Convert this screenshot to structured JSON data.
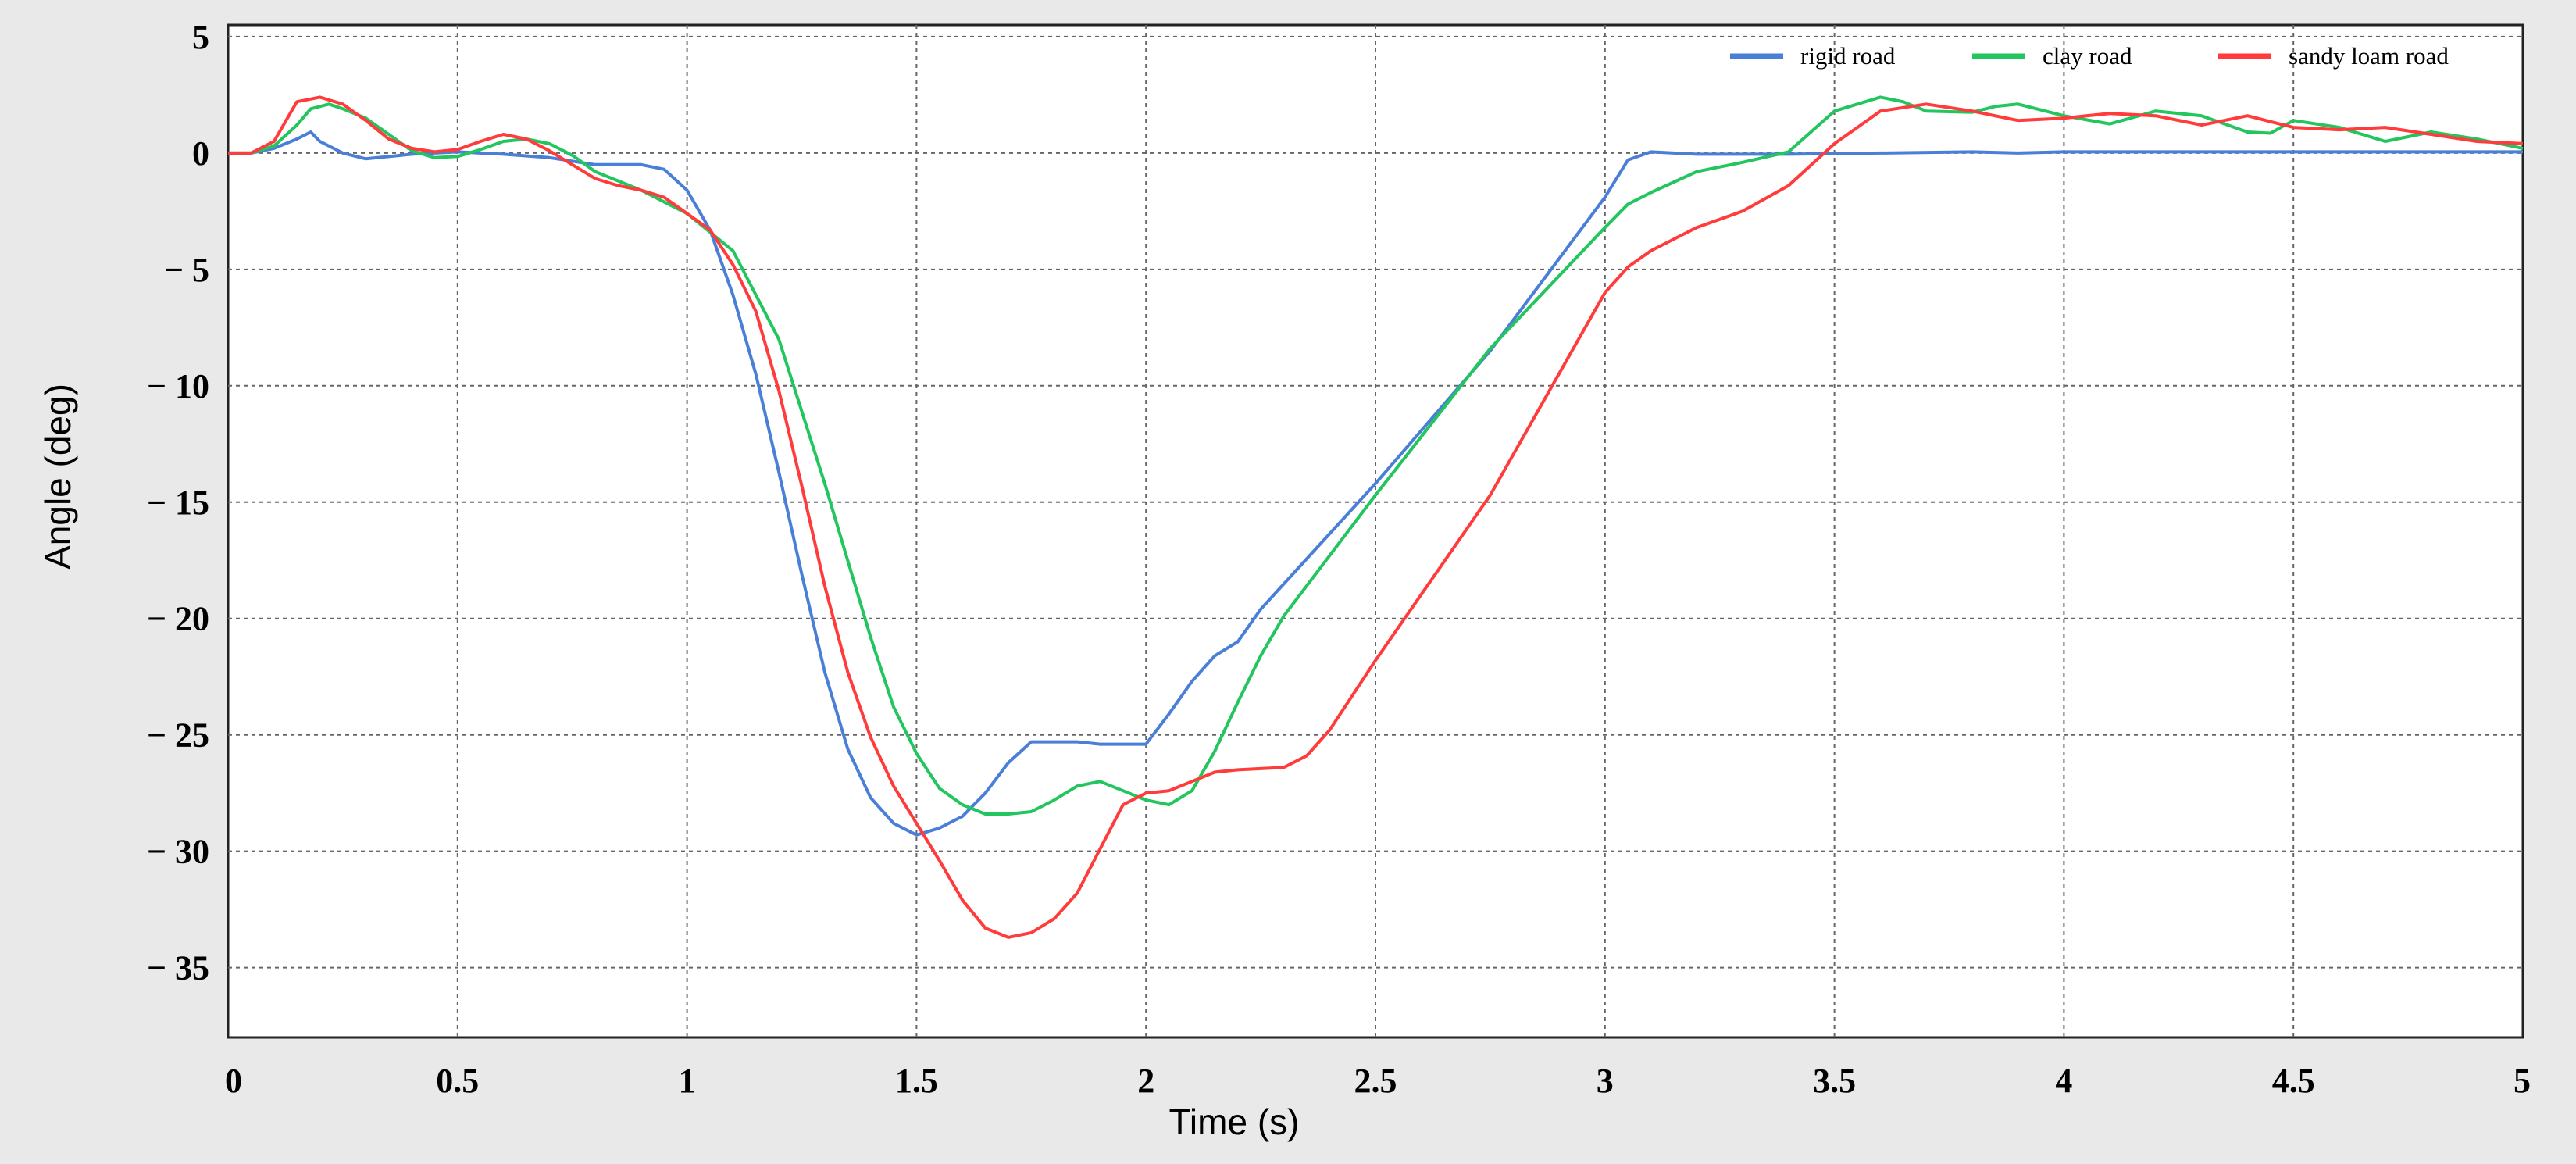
{
  "chart_data": {
    "type": "line",
    "title": "",
    "xlabel": "Time (s)",
    "ylabel": "Angle (deg)",
    "xlim": [
      0,
      5
    ],
    "ylim": [
      -38,
      5.5
    ],
    "x_ticks": [
      0,
      0.5,
      1,
      1.5,
      2,
      2.5,
      3,
      3.5,
      4,
      4.5,
      5
    ],
    "x_tick_labels": [
      "0",
      "0.5",
      "1",
      "1.5",
      "2",
      "2.5",
      "3",
      "3.5",
      "4",
      "4.5",
      "5"
    ],
    "y_ticks": [
      5,
      0,
      -5,
      -10,
      -15,
      -20,
      -25,
      -30,
      -35
    ],
    "y_tick_labels": [
      "5",
      "0",
      "− 5",
      "− 10",
      "− 15",
      "− 20",
      "− 25",
      "− 30",
      "− 35"
    ],
    "grid": true,
    "legend_position": "top-right",
    "series": [
      {
        "name": "rigid road",
        "color": "#4a7fd8",
        "points": [
          [
            0,
            0
          ],
          [
            0.05,
            0
          ],
          [
            0.1,
            0.2
          ],
          [
            0.15,
            0.6
          ],
          [
            0.18,
            0.9
          ],
          [
            0.2,
            0.5
          ],
          [
            0.25,
            0
          ],
          [
            0.3,
            -0.25
          ],
          [
            0.4,
            -0.05
          ],
          [
            0.5,
            0.05
          ],
          [
            0.6,
            -0.05
          ],
          [
            0.7,
            -0.2
          ],
          [
            0.8,
            -0.5
          ],
          [
            0.9,
            -0.5
          ],
          [
            0.95,
            -0.7
          ],
          [
            1.0,
            -1.6
          ],
          [
            1.05,
            -3.3
          ],
          [
            1.1,
            -6.1
          ],
          [
            1.15,
            -9.5
          ],
          [
            1.2,
            -13.7
          ],
          [
            1.25,
            -18.1
          ],
          [
            1.3,
            -22.3
          ],
          [
            1.35,
            -25.6
          ],
          [
            1.4,
            -27.7
          ],
          [
            1.45,
            -28.8
          ],
          [
            1.5,
            -29.3
          ],
          [
            1.55,
            -29.0
          ],
          [
            1.6,
            -28.5
          ],
          [
            1.65,
            -27.5
          ],
          [
            1.7,
            -26.2
          ],
          [
            1.75,
            -25.3
          ],
          [
            1.8,
            -25.3
          ],
          [
            1.85,
            -25.3
          ],
          [
            1.9,
            -25.4
          ],
          [
            1.95,
            -25.4
          ],
          [
            2.0,
            -25.4
          ],
          [
            2.05,
            -24.1
          ],
          [
            2.1,
            -22.7
          ],
          [
            2.15,
            -21.6
          ],
          [
            2.2,
            -21.0
          ],
          [
            2.25,
            -19.6
          ],
          [
            2.5,
            -14.2
          ],
          [
            2.75,
            -8.5
          ],
          [
            3.0,
            -1.9
          ],
          [
            3.05,
            -0.3
          ],
          [
            3.1,
            0.05
          ],
          [
            3.2,
            -0.05
          ],
          [
            3.4,
            -0.05
          ],
          [
            3.6,
            0
          ],
          [
            3.8,
            0.05
          ],
          [
            3.9,
            0
          ],
          [
            4.0,
            0.05
          ],
          [
            4.5,
            0.05
          ],
          [
            5.0,
            0.05
          ]
        ]
      },
      {
        "name": "clay road",
        "color": "#22c55e",
        "points": [
          [
            0,
            0
          ],
          [
            0.05,
            0
          ],
          [
            0.1,
            0.3
          ],
          [
            0.15,
            1.2
          ],
          [
            0.18,
            1.9
          ],
          [
            0.22,
            2.1
          ],
          [
            0.25,
            1.9
          ],
          [
            0.3,
            1.5
          ],
          [
            0.35,
            0.8
          ],
          [
            0.4,
            0.1
          ],
          [
            0.45,
            -0.2
          ],
          [
            0.5,
            -0.15
          ],
          [
            0.55,
            0.15
          ],
          [
            0.6,
            0.5
          ],
          [
            0.65,
            0.6
          ],
          [
            0.7,
            0.4
          ],
          [
            0.75,
            -0.1
          ],
          [
            0.8,
            -0.8
          ],
          [
            0.9,
            -1.6
          ],
          [
            1.0,
            -2.6
          ],
          [
            1.1,
            -4.2
          ],
          [
            1.2,
            -8.0
          ],
          [
            1.3,
            -14.2
          ],
          [
            1.4,
            -20.8
          ],
          [
            1.45,
            -23.8
          ],
          [
            1.5,
            -25.8
          ],
          [
            1.55,
            -27.3
          ],
          [
            1.6,
            -28.0
          ],
          [
            1.65,
            -28.4
          ],
          [
            1.7,
            -28.4
          ],
          [
            1.75,
            -28.3
          ],
          [
            1.8,
            -27.8
          ],
          [
            1.85,
            -27.2
          ],
          [
            1.9,
            -27.0
          ],
          [
            1.95,
            -27.4
          ],
          [
            2.0,
            -27.8
          ],
          [
            2.05,
            -28.0
          ],
          [
            2.1,
            -27.4
          ],
          [
            2.15,
            -25.7
          ],
          [
            2.2,
            -23.6
          ],
          [
            2.25,
            -21.6
          ],
          [
            2.3,
            -19.9
          ],
          [
            2.5,
            -14.7
          ],
          [
            2.75,
            -8.4
          ],
          [
            3.0,
            -3.2
          ],
          [
            3.05,
            -2.2
          ],
          [
            3.1,
            -1.7
          ],
          [
            3.2,
            -0.8
          ],
          [
            3.3,
            -0.4
          ],
          [
            3.4,
            0.05
          ],
          [
            3.5,
            1.8
          ],
          [
            3.6,
            2.4
          ],
          [
            3.65,
            2.2
          ],
          [
            3.7,
            1.8
          ],
          [
            3.8,
            1.75
          ],
          [
            3.85,
            2.0
          ],
          [
            3.9,
            2.1
          ],
          [
            4.0,
            1.6
          ],
          [
            4.1,
            1.25
          ],
          [
            4.2,
            1.8
          ],
          [
            4.3,
            1.6
          ],
          [
            4.4,
            0.9
          ],
          [
            4.45,
            0.85
          ],
          [
            4.5,
            1.4
          ],
          [
            4.6,
            1.1
          ],
          [
            4.7,
            0.5
          ],
          [
            4.8,
            0.9
          ],
          [
            4.9,
            0.6
          ],
          [
            5.0,
            0.2
          ]
        ]
      },
      {
        "name": "sandy loam road",
        "color": "#ff3b3b",
        "points": [
          [
            0,
            0
          ],
          [
            0.05,
            0
          ],
          [
            0.1,
            0.5
          ],
          [
            0.15,
            2.2
          ],
          [
            0.2,
            2.4
          ],
          [
            0.25,
            2.1
          ],
          [
            0.3,
            1.4
          ],
          [
            0.35,
            0.6
          ],
          [
            0.4,
            0.2
          ],
          [
            0.45,
            0.05
          ],
          [
            0.5,
            0.15
          ],
          [
            0.55,
            0.5
          ],
          [
            0.6,
            0.8
          ],
          [
            0.65,
            0.6
          ],
          [
            0.7,
            0.1
          ],
          [
            0.75,
            -0.5
          ],
          [
            0.8,
            -1.1
          ],
          [
            0.85,
            -1.4
          ],
          [
            0.9,
            -1.6
          ],
          [
            0.95,
            -1.9
          ],
          [
            1.0,
            -2.6
          ],
          [
            1.05,
            -3.3
          ],
          [
            1.1,
            -4.8
          ],
          [
            1.15,
            -6.8
          ],
          [
            1.2,
            -10.2
          ],
          [
            1.25,
            -14.3
          ],
          [
            1.3,
            -18.6
          ],
          [
            1.35,
            -22.3
          ],
          [
            1.4,
            -25.1
          ],
          [
            1.45,
            -27.2
          ],
          [
            1.5,
            -28.8
          ],
          [
            1.55,
            -30.4
          ],
          [
            1.6,
            -32.1
          ],
          [
            1.65,
            -33.3
          ],
          [
            1.7,
            -33.7
          ],
          [
            1.75,
            -33.5
          ],
          [
            1.8,
            -32.9
          ],
          [
            1.85,
            -31.8
          ],
          [
            1.9,
            -29.9
          ],
          [
            1.95,
            -28.0
          ],
          [
            2.0,
            -27.5
          ],
          [
            2.05,
            -27.4
          ],
          [
            2.1,
            -27.0
          ],
          [
            2.15,
            -26.6
          ],
          [
            2.2,
            -26.5
          ],
          [
            2.3,
            -26.4
          ],
          [
            2.35,
            -25.9
          ],
          [
            2.4,
            -24.8
          ],
          [
            2.5,
            -21.8
          ],
          [
            2.75,
            -14.7
          ],
          [
            3.0,
            -6.0
          ],
          [
            3.05,
            -4.9
          ],
          [
            3.1,
            -4.2
          ],
          [
            3.2,
            -3.2
          ],
          [
            3.3,
            -2.5
          ],
          [
            3.4,
            -1.4
          ],
          [
            3.5,
            0.4
          ],
          [
            3.55,
            1.1
          ],
          [
            3.6,
            1.8
          ],
          [
            3.7,
            2.1
          ],
          [
            3.8,
            1.8
          ],
          [
            3.9,
            1.4
          ],
          [
            4.0,
            1.5
          ],
          [
            4.1,
            1.7
          ],
          [
            4.2,
            1.6
          ],
          [
            4.3,
            1.2
          ],
          [
            4.4,
            1.6
          ],
          [
            4.5,
            1.1
          ],
          [
            4.6,
            1.0
          ],
          [
            4.7,
            1.1
          ],
          [
            4.8,
            0.8
          ],
          [
            4.9,
            0.5
          ],
          [
            5.0,
            0.4
          ]
        ]
      }
    ]
  }
}
